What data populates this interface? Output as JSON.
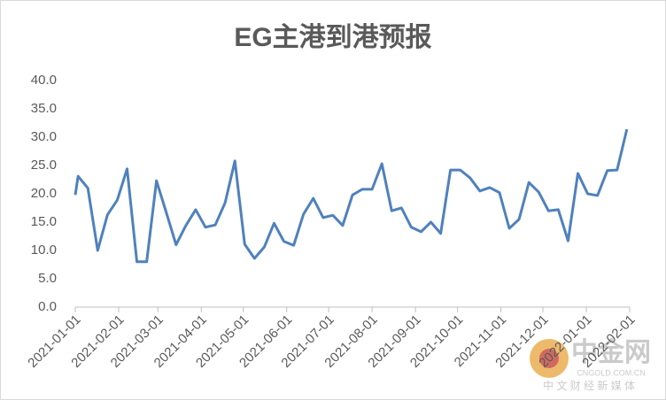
{
  "chart_data": {
    "type": "line",
    "title": "EG主港到港预报",
    "x": [
      "2021-01-01",
      "2021-01-03",
      "2021-01-10",
      "2021-01-17",
      "2021-01-24",
      "2021-01-31",
      "2021-02-07",
      "2021-02-14",
      "2021-02-21",
      "2021-02-28",
      "2021-03-07",
      "2021-03-14",
      "2021-03-21",
      "2021-03-28",
      "2021-04-04",
      "2021-04-11",
      "2021-04-18",
      "2021-04-25",
      "2021-05-02",
      "2021-05-09",
      "2021-05-16",
      "2021-05-23",
      "2021-05-30",
      "2021-06-06",
      "2021-06-13",
      "2021-06-20",
      "2021-06-27",
      "2021-07-04",
      "2021-07-11",
      "2021-07-18",
      "2021-07-25",
      "2021-08-01",
      "2021-08-08",
      "2021-08-15",
      "2021-08-22",
      "2021-08-29",
      "2021-09-05",
      "2021-09-12",
      "2021-09-19",
      "2021-09-26",
      "2021-10-03",
      "2021-10-10",
      "2021-10-17",
      "2021-10-24",
      "2021-10-31",
      "2021-11-07",
      "2021-11-14",
      "2021-11-21",
      "2021-11-28",
      "2021-12-05",
      "2021-12-12",
      "2021-12-19",
      "2021-12-26",
      "2022-01-02",
      "2022-01-09",
      "2022-01-16",
      "2022-01-23",
      "2022-01-30"
    ],
    "series": [
      {
        "name": "EG主港到港预报",
        "color": "#4f81bd",
        "values": [
          19.8,
          23.1,
          21.0,
          10.0,
          16.3,
          18.9,
          24.4,
          8.0,
          8.0,
          22.3,
          16.7,
          11.0,
          14.4,
          17.2,
          14.1,
          14.5,
          18.4,
          25.8,
          11.1,
          8.6,
          10.6,
          14.8,
          11.6,
          10.9,
          16.4,
          19.2,
          15.8,
          16.2,
          14.4,
          19.8,
          20.8,
          20.8,
          25.3,
          17.0,
          17.5,
          14.1,
          13.3,
          15.0,
          13.0,
          24.2,
          24.2,
          22.8,
          20.5,
          21.1,
          20.2,
          13.9,
          15.5,
          22.0,
          20.3,
          17.0,
          17.2,
          11.7,
          23.6,
          20.0,
          19.7,
          24.1,
          24.2,
          31.4
        ]
      }
    ],
    "xlim": [
      "2021-01-01",
      "2022-02-01"
    ],
    "xticks": [
      "2021-01-01",
      "2021-02-01",
      "2021-03-01",
      "2021-04-01",
      "2021-05-01",
      "2021-06-01",
      "2021-07-01",
      "2021-08-01",
      "2021-09-01",
      "2021-10-01",
      "2021-11-01",
      "2021-12-01",
      "2022-01-01",
      "2022-02-01"
    ],
    "ylim": [
      0,
      40
    ],
    "yticks": [
      {
        "value": 0,
        "label": "0.0"
      },
      {
        "value": 5,
        "label": "5.0"
      },
      {
        "value": 10,
        "label": "10.0"
      },
      {
        "value": 15,
        "label": "15.0"
      },
      {
        "value": 20,
        "label": "20.0"
      },
      {
        "value": 25,
        "label": "25.0"
      },
      {
        "value": 30,
        "label": "30.0"
      },
      {
        "value": 35,
        "label": "35.0"
      },
      {
        "value": 40,
        "label": "40.0"
      }
    ],
    "grid": false
  },
  "watermark": {
    "logo": "中金网",
    "domain": "CNGOLD.COM.CN",
    "tagline": "中 文 财 经 新 媒 体"
  }
}
